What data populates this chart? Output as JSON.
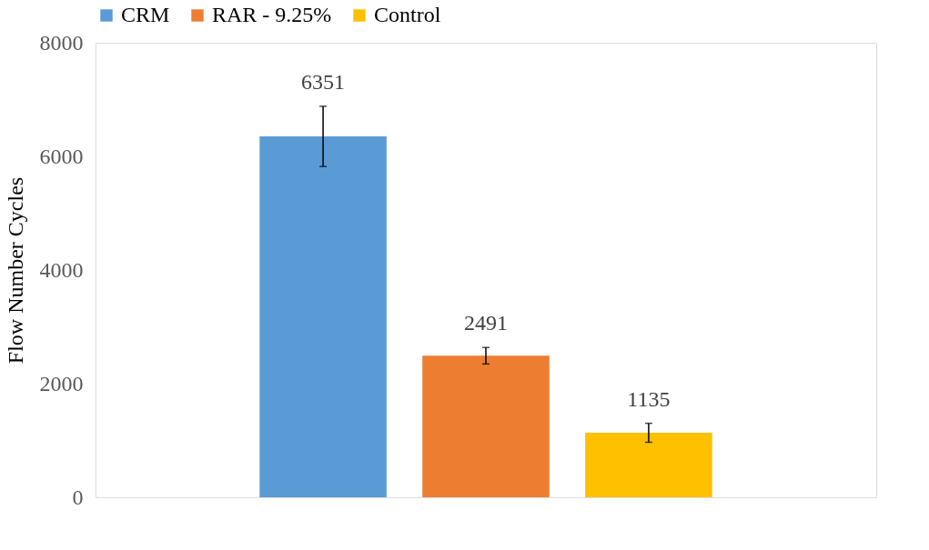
{
  "chart_data": {
    "type": "bar",
    "ylabel": "Flow Number Cycles",
    "categories": [
      null
    ],
    "series": [
      {
        "name": "CRM",
        "color": "#5b9bd5",
        "values": [
          6351
        ],
        "errors": [
          530
        ]
      },
      {
        "name": "RAR - 9.25%",
        "color": "#ed7d31",
        "values": [
          2491
        ],
        "errors": [
          145
        ]
      },
      {
        "name": "Control",
        "color": "#ffc000",
        "values": [
          1135
        ],
        "errors": [
          167
        ]
      }
    ],
    "ylim": [
      0,
      8000
    ],
    "yticks": [
      0,
      2000,
      4000,
      6000,
      8000
    ],
    "grid": false,
    "legend": "top",
    "data_labels": true,
    "tick_labels": "y"
  }
}
